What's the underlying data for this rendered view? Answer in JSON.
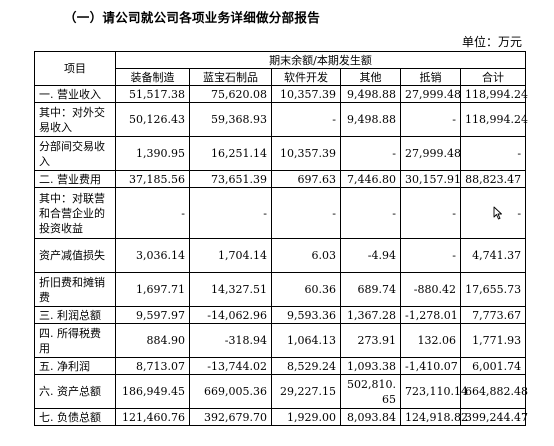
{
  "heading": "（一）请公司就公司各项业务详细做分部报告",
  "unit": "单位：万元",
  "table": {
    "item_header": "项目",
    "period_header": "期末余额/本期发生额",
    "columns": [
      "装备制造",
      "蓝宝石制品",
      "软件开发",
      "其他",
      "抵销",
      "合计"
    ],
    "rows": [
      {
        "label": "一. 营业收入",
        "values": [
          "51,517.38",
          "75,620.08",
          "10,357.39",
          "9,498.88",
          "27,999.48",
          "118,994.24"
        ]
      },
      {
        "label": "其中：对外交易收入",
        "values": [
          "50,126.43",
          "59,368.93",
          "-",
          "9,498.88",
          "-",
          "118,994.24"
        ]
      },
      {
        "label": "分部间交易收入",
        "values": [
          "1,390.95",
          "16,251.14",
          "10,357.39",
          "-",
          "27,999.48",
          "-"
        ]
      },
      {
        "label": "二. 营业费用",
        "values": [
          "37,185.56",
          "73,651.39",
          "697.63",
          "7,446.80",
          "30,157.91",
          "88,823.47"
        ]
      },
      {
        "label": "其中：对联营和合营企业的投资收益",
        "values": [
          "-",
          "-",
          "-",
          "-",
          "-",
          "-"
        ]
      },
      {
        "label": "资产减值损失",
        "values": [
          "3,036.14",
          "1,704.14",
          "6.03",
          "-4.94",
          "-",
          "4,741.37"
        ]
      },
      {
        "label": "折旧费和摊销费",
        "values": [
          "1,697.71",
          "14,327.51",
          "60.36",
          "689.74",
          "-880.42",
          "17,655.73"
        ]
      },
      {
        "label": "三. 利润总额",
        "values": [
          "9,597.97",
          "-14,062.96",
          "9,593.36",
          "1,367.28",
          "-1,278.01",
          "7,773.67"
        ]
      },
      {
        "label": "四. 所得税费用",
        "values": [
          "884.90",
          "-318.94",
          "1,064.13",
          "273.91",
          "132.06",
          "1,771.93"
        ]
      },
      {
        "label": "五. 净利润",
        "values": [
          "8,713.07",
          "-13,744.02",
          "8,529.24",
          "1,093.38",
          "-1,410.07",
          "6,001.74"
        ]
      },
      {
        "label": "六. 资产总额",
        "values": [
          "186,949.45",
          "669,005.36",
          "29,227.15",
          "502,810.65",
          "723,110.14",
          "664,882.48"
        ]
      },
      {
        "label": "七. 负债总额",
        "values": [
          "121,460.76",
          "392,679.70",
          "1,929.00",
          "8,093.84",
          "124,918.82",
          "399,244.47"
        ]
      }
    ]
  },
  "cursor_icon": "mouse-pointer-icon"
}
